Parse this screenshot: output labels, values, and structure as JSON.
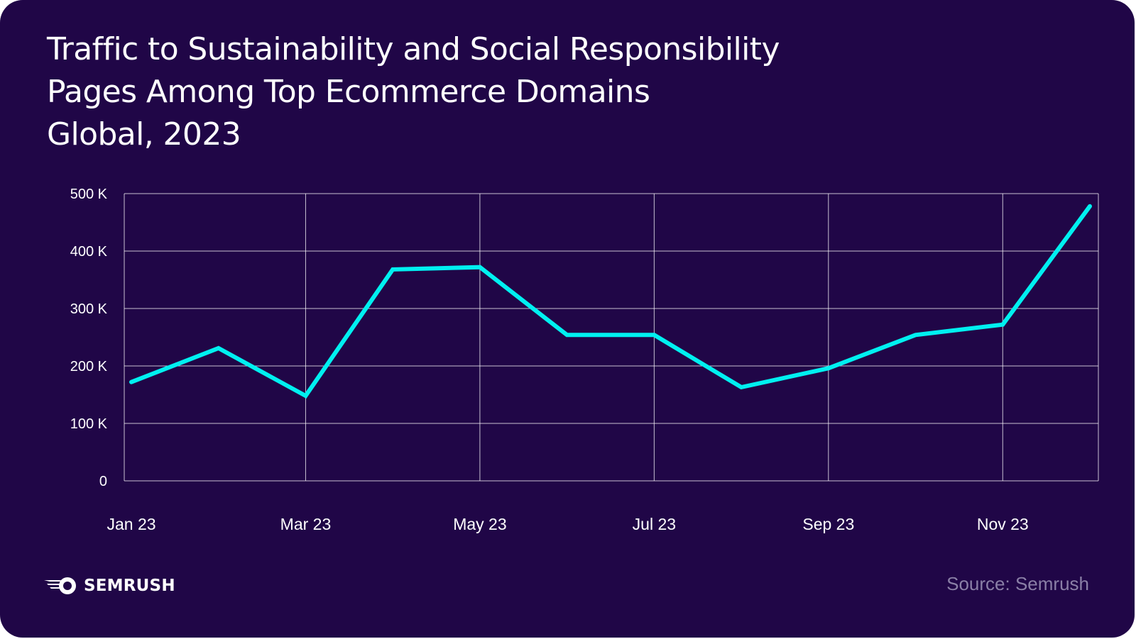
{
  "title_lines": [
    "Traffic to Sustainability and Social Responsibility",
    "Pages Among Top Ecommerce Domains",
    "Global, 2023"
  ],
  "brand": {
    "name": "SEMRUSH",
    "icon": "semrush-fireball-icon"
  },
  "source": "Source: Semrush",
  "colors": {
    "background": "#200647",
    "line": "#00f0f0",
    "grid": "#ffffff",
    "text": "#ffffff",
    "muted": "#8a7fa6"
  },
  "chart_data": {
    "type": "line",
    "title": "Traffic to Sustainability and Social Responsibility Pages Among Top Ecommerce Domains Global, 2023",
    "x": [
      "Jan 23",
      "Feb 23",
      "Mar 23",
      "Apr 23",
      "May 23",
      "Jun 23",
      "Jul 23",
      "Aug 23",
      "Sep 23",
      "Oct 23",
      "Nov 23",
      "Dec 23"
    ],
    "x_tick_labels": [
      "Jan 23",
      "Mar 23",
      "May 23",
      "Jul 23",
      "Sep 23",
      "Nov 23"
    ],
    "series": [
      {
        "values": [
          172000,
          231000,
          148000,
          368000,
          372000,
          254000,
          254000,
          163000,
          196000,
          254000,
          272000,
          478000
        ]
      }
    ],
    "y_ticks": [
      0,
      100000,
      200000,
      300000,
      400000,
      500000
    ],
    "y_tick_labels": [
      "0",
      "100 K",
      "200 K",
      "300 K",
      "400 K",
      "500 K"
    ],
    "ylim": [
      0,
      500000
    ],
    "grid": true,
    "legend": "none"
  }
}
